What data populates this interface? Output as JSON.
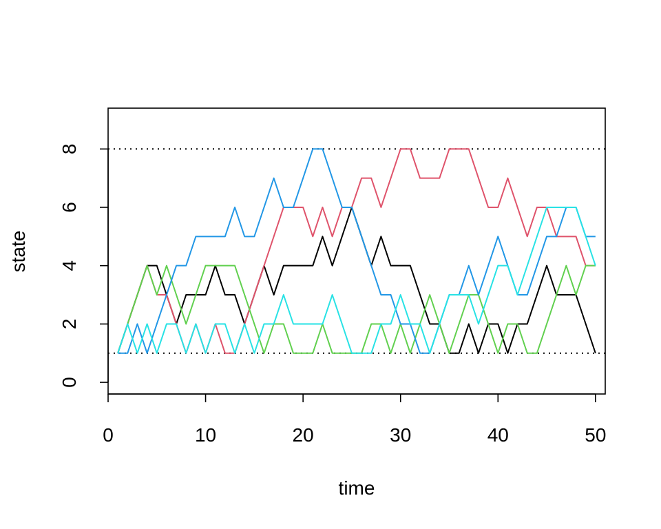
{
  "chart_data": {
    "type": "line",
    "title": "",
    "xlabel": "time",
    "ylabel": "state",
    "xlim": [
      0,
      51
    ],
    "ylim": [
      -0.4,
      9.4
    ],
    "x_ticks": [
      0,
      10,
      20,
      30,
      40,
      50
    ],
    "y_ticks": [
      0,
      2,
      4,
      6,
      8
    ],
    "reference_lines": [
      {
        "y": 8,
        "style": "dotted",
        "color": "#000000"
      },
      {
        "y": 1,
        "style": "dotted",
        "color": "#000000"
      }
    ],
    "x": [
      1,
      2,
      3,
      4,
      5,
      6,
      7,
      8,
      9,
      10,
      11,
      12,
      13,
      14,
      15,
      16,
      17,
      18,
      19,
      20,
      21,
      22,
      23,
      24,
      25,
      26,
      27,
      28,
      29,
      30,
      31,
      32,
      33,
      34,
      35,
      36,
      37,
      38,
      39,
      40,
      41,
      42,
      43,
      44,
      45,
      46,
      47,
      48,
      49,
      50
    ],
    "series": [
      {
        "color": "#000000",
        "values": [
          1,
          2,
          3,
          4,
          4,
          3,
          2,
          3,
          3,
          3,
          4,
          3,
          3,
          2,
          3,
          4,
          3,
          4,
          4,
          4,
          4,
          5,
          4,
          5,
          6,
          5,
          4,
          5,
          4,
          4,
          4,
          3,
          2,
          2,
          1,
          1,
          2,
          1,
          2,
          2,
          1,
          2,
          2,
          3,
          4,
          3,
          3,
          3,
          2,
          1
        ]
      },
      {
        "color": "#DF536B",
        "values": [
          1,
          2,
          3,
          4,
          3,
          3,
          2,
          1,
          2,
          1,
          2,
          1,
          1,
          2,
          3,
          4,
          5,
          6,
          6,
          6,
          5,
          6,
          5,
          6,
          6,
          7,
          7,
          6,
          7,
          8,
          8,
          7,
          7,
          7,
          8,
          8,
          8,
          7,
          6,
          6,
          7,
          6,
          5,
          6,
          6,
          5,
          5,
          5,
          4,
          4
        ]
      },
      {
        "color": "#61D04F",
        "values": [
          1,
          2,
          3,
          4,
          3,
          4,
          3,
          2,
          3,
          4,
          4,
          4,
          4,
          3,
          2,
          1,
          2,
          2,
          1,
          1,
          1,
          2,
          1,
          1,
          1,
          1,
          2,
          2,
          1,
          2,
          1,
          2,
          3,
          2,
          1,
          2,
          3,
          3,
          2,
          1,
          2,
          2,
          1,
          1,
          2,
          3,
          4,
          3,
          4,
          4
        ]
      },
      {
        "color": "#2297E6",
        "values": [
          1,
          1,
          2,
          1,
          2,
          3,
          4,
          4,
          5,
          5,
          5,
          5,
          6,
          5,
          5,
          6,
          7,
          6,
          6,
          7,
          8,
          8,
          7,
          6,
          6,
          5,
          4,
          3,
          3,
          2,
          2,
          1,
          1,
          2,
          3,
          3,
          4,
          3,
          4,
          5,
          4,
          3,
          3,
          4,
          5,
          5,
          6,
          6,
          5,
          5
        ]
      },
      {
        "color": "#28E2E5",
        "values": [
          1,
          2,
          1,
          2,
          1,
          2,
          2,
          1,
          2,
          1,
          2,
          2,
          1,
          2,
          1,
          2,
          2,
          3,
          2,
          2,
          2,
          2,
          3,
          2,
          1,
          1,
          1,
          2,
          2,
          3,
          2,
          2,
          1,
          2,
          3,
          3,
          3,
          2,
          3,
          4,
          4,
          3,
          4,
          5,
          6,
          6,
          6,
          6,
          5,
          4
        ]
      }
    ]
  }
}
